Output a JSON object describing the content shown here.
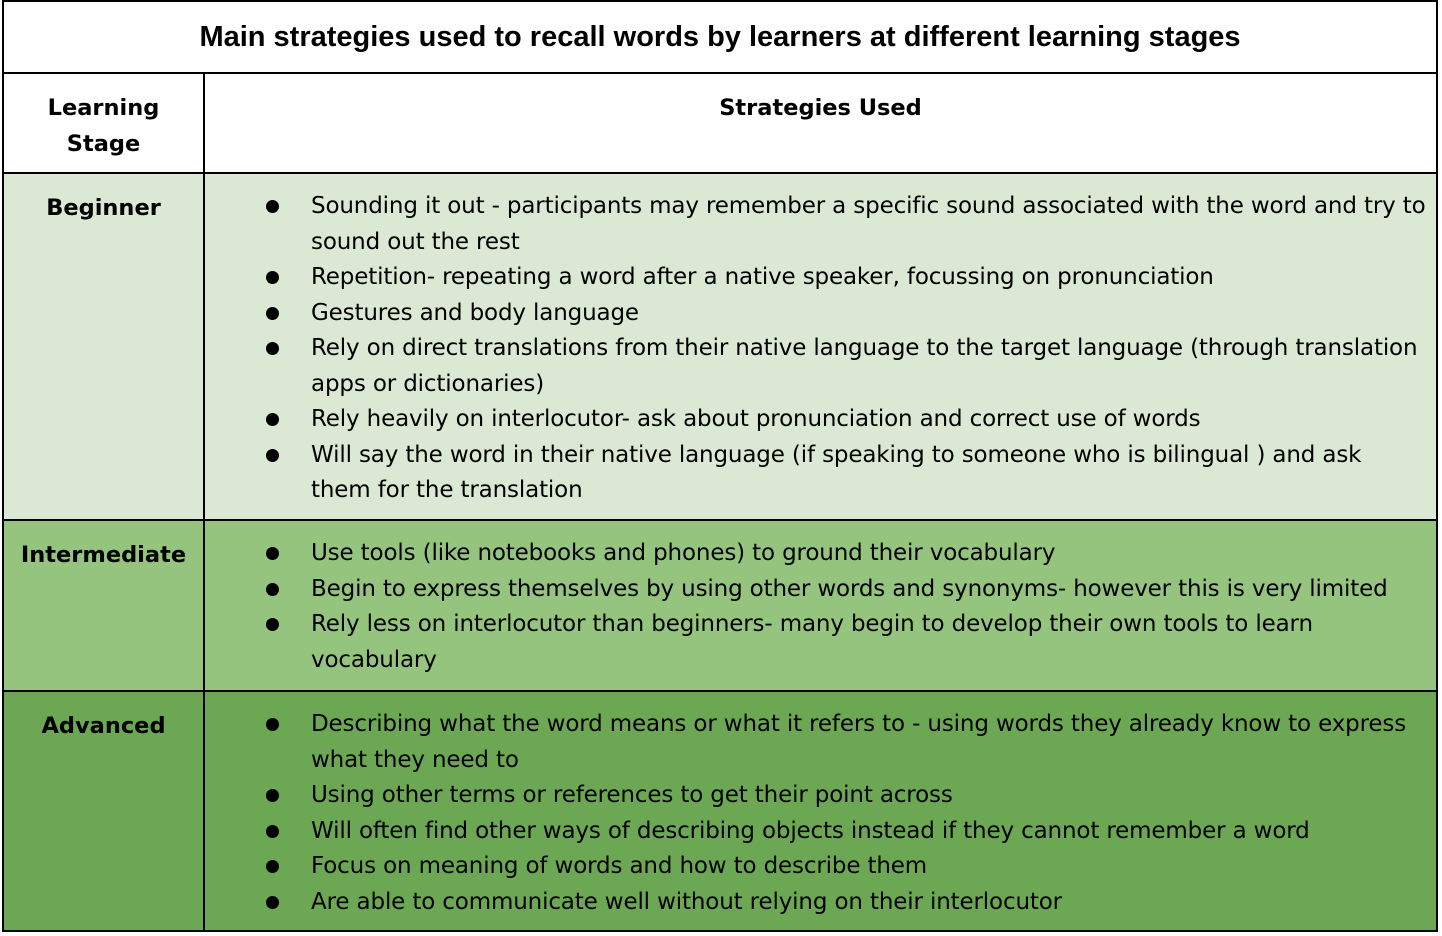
{
  "title": "Main strategies used to recall words by learners at different learning stages",
  "header": {
    "stage": "Learning Stage",
    "strategies": "Strategies Used"
  },
  "rows": [
    {
      "stage": "Beginner",
      "color": "#dbe9d4",
      "items": [
        "Sounding it out - participants may remember a specific sound associated with the word and try to sound out the rest",
        "Repetition- repeating a word after a native speaker, focussing on pronunciation",
        "Gestures and body language",
        "Rely on direct translations from their native language to the target language (through translation apps or dictionaries)",
        "Rely heavily on interlocutor- ask about pronunciation and correct use of words",
        "Will say the word in their native language (if speaking to someone who is bilingual ) and ask them for the translation"
      ]
    },
    {
      "stage": "Intermediate",
      "color": "#94c47e",
      "items": [
        "Use tools (like notebooks and phones) to ground their vocabulary",
        "Begin to express themselves by using other words and synonyms- however this is very limited",
        "Rely less on interlocutor than beginners- many begin to develop their own tools to learn vocabulary"
      ]
    },
    {
      "stage": "Advanced",
      "color": "#6ca754",
      "items": [
        "Describing what the word means or what it refers to - using words they already know to express what they need to",
        "Using other terms or references to get their point across",
        "Will often find other ways of describing objects instead if they cannot remember a word",
        "Focus on meaning of words and how to describe them",
        "Are able to communicate well without relying on their interlocutor"
      ]
    }
  ]
}
